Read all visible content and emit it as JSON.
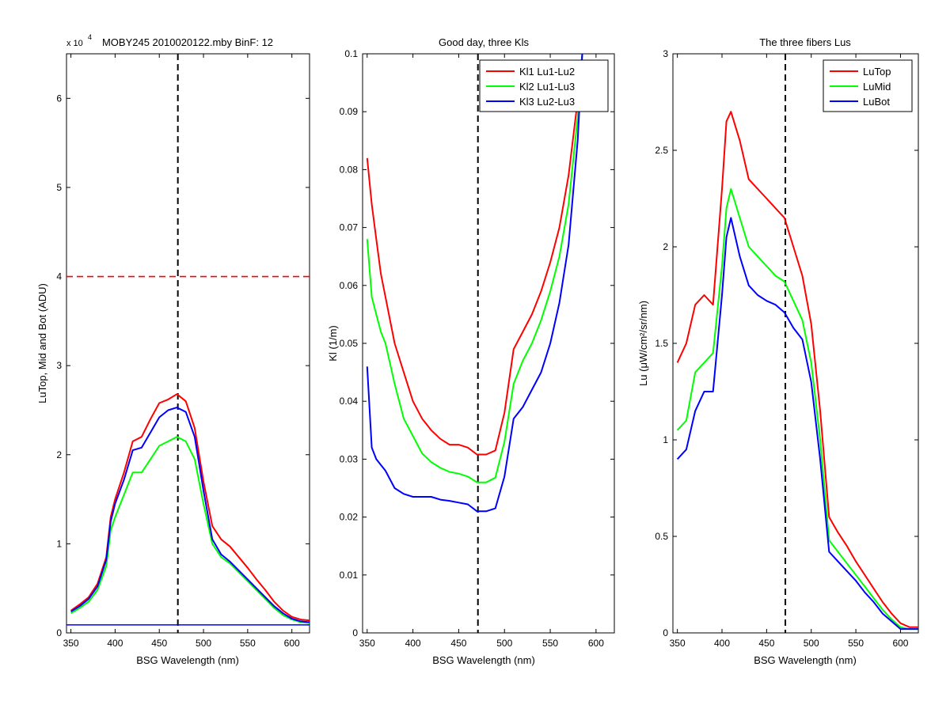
{
  "chart_data": [
    {
      "type": "line",
      "title": "MOBY245  2010020122.mby BinF: 12",
      "exponent_label": "x 10",
      "exponent_power": "4",
      "xlabel": "BSG Wavelength (nm)",
      "ylabel": "LuTop, Mid and Bot (ADU)",
      "xlim": [
        345,
        620
      ],
      "ylim": [
        0,
        6.5
      ],
      "y_scale_factor": 10000,
      "xticks": [
        350,
        400,
        450,
        500,
        550,
        600
      ],
      "yticks": [
        0,
        1,
        2,
        3,
        4,
        5,
        6
      ],
      "grid": false,
      "reference_lines": [
        {
          "orientation": "vertical",
          "value": 471,
          "color": "#000000",
          "style": "dashed"
        },
        {
          "orientation": "horizontal",
          "value": 4.0,
          "color": "#ff0000",
          "style": "dashed"
        },
        {
          "orientation": "horizontal",
          "value": 0.09,
          "color": "#0000ff",
          "style": "solid"
        }
      ],
      "series": [
        {
          "color": "#ff0000",
          "x": [
            350,
            360,
            370,
            380,
            390,
            395,
            400,
            410,
            420,
            430,
            440,
            450,
            460,
            470,
            480,
            490,
            500,
            510,
            520,
            530,
            540,
            550,
            560,
            570,
            580,
            590,
            600,
            610,
            620
          ],
          "values": [
            0.25,
            0.32,
            0.4,
            0.55,
            0.85,
            1.3,
            1.5,
            1.8,
            2.15,
            2.2,
            2.4,
            2.58,
            2.62,
            2.68,
            2.6,
            2.3,
            1.7,
            1.2,
            1.05,
            0.97,
            0.85,
            0.73,
            0.6,
            0.48,
            0.35,
            0.25,
            0.18,
            0.15,
            0.14
          ]
        },
        {
          "color": "#00ff00",
          "x": [
            350,
            360,
            370,
            380,
            390,
            395,
            400,
            410,
            420,
            430,
            440,
            450,
            460,
            470,
            480,
            490,
            500,
            510,
            520,
            530,
            540,
            550,
            560,
            570,
            580,
            590,
            600,
            610,
            620
          ],
          "values": [
            0.22,
            0.28,
            0.35,
            0.48,
            0.75,
            1.15,
            1.3,
            1.55,
            1.8,
            1.8,
            1.95,
            2.1,
            2.15,
            2.2,
            2.15,
            1.95,
            1.45,
            1.0,
            0.85,
            0.78,
            0.68,
            0.58,
            0.48,
            0.38,
            0.28,
            0.2,
            0.15,
            0.12,
            0.11
          ]
        },
        {
          "color": "#0000ff",
          "x": [
            350,
            360,
            370,
            380,
            390,
            395,
            400,
            410,
            420,
            430,
            440,
            450,
            460,
            470,
            480,
            490,
            500,
            510,
            520,
            530,
            540,
            550,
            560,
            570,
            580,
            590,
            600,
            610,
            620
          ],
          "values": [
            0.24,
            0.3,
            0.38,
            0.52,
            0.82,
            1.25,
            1.45,
            1.72,
            2.05,
            2.08,
            2.25,
            2.42,
            2.5,
            2.53,
            2.48,
            2.2,
            1.6,
            1.05,
            0.88,
            0.8,
            0.7,
            0.6,
            0.5,
            0.4,
            0.3,
            0.22,
            0.16,
            0.13,
            0.12
          ]
        }
      ]
    },
    {
      "type": "line",
      "title": "Good day, three Kls",
      "xlabel": "BSG Wavelength (nm)",
      "ylabel": "Kl (1/m)",
      "xlim": [
        345,
        620
      ],
      "ylim": [
        0,
        0.1
      ],
      "xticks": [
        350,
        400,
        450,
        500,
        550,
        600
      ],
      "yticks": [
        0,
        0.01,
        0.02,
        0.03,
        0.04,
        0.05,
        0.06,
        0.07,
        0.08,
        0.09,
        0.1
      ],
      "grid": false,
      "legend_position": "top-right",
      "reference_lines": [
        {
          "orientation": "vertical",
          "value": 471,
          "color": "#000000",
          "style": "dashed"
        }
      ],
      "series": [
        {
          "name": "Kl1 Lu1-Lu2",
          "color": "#ff0000",
          "x": [
            350,
            355,
            360,
            365,
            370,
            380,
            390,
            400,
            410,
            420,
            430,
            440,
            450,
            460,
            470,
            480,
            490,
            500,
            510,
            520,
            530,
            540,
            550,
            560,
            570,
            580,
            585
          ],
          "values": [
            0.082,
            0.074,
            0.068,
            0.062,
            0.058,
            0.05,
            0.045,
            0.04,
            0.037,
            0.035,
            0.0335,
            0.0325,
            0.0325,
            0.032,
            0.0308,
            0.0308,
            0.0315,
            0.038,
            0.049,
            0.052,
            0.055,
            0.059,
            0.064,
            0.07,
            0.079,
            0.092,
            0.1
          ]
        },
        {
          "name": "Kl2 Lu1-Lu3",
          "color": "#00ff00",
          "x": [
            350,
            355,
            360,
            365,
            370,
            380,
            390,
            400,
            410,
            420,
            430,
            440,
            450,
            460,
            470,
            480,
            490,
            500,
            510,
            520,
            530,
            540,
            550,
            560,
            570,
            580,
            585
          ],
          "values": [
            0.068,
            0.058,
            0.055,
            0.052,
            0.05,
            0.043,
            0.037,
            0.034,
            0.031,
            0.0295,
            0.0285,
            0.0278,
            0.0275,
            0.027,
            0.026,
            0.026,
            0.0268,
            0.033,
            0.043,
            0.047,
            0.05,
            0.054,
            0.059,
            0.065,
            0.074,
            0.089,
            0.1
          ]
        },
        {
          "name": "Kl3 Lu2-Lu3",
          "color": "#0000ff",
          "x": [
            350,
            355,
            360,
            365,
            370,
            380,
            390,
            400,
            410,
            420,
            430,
            440,
            450,
            460,
            470,
            480,
            490,
            500,
            510,
            520,
            530,
            540,
            550,
            560,
            570,
            580,
            585
          ],
          "values": [
            0.046,
            0.032,
            0.03,
            0.029,
            0.028,
            0.025,
            0.024,
            0.0235,
            0.0235,
            0.0235,
            0.023,
            0.0228,
            0.0225,
            0.0222,
            0.021,
            0.021,
            0.0215,
            0.027,
            0.037,
            0.039,
            0.042,
            0.045,
            0.05,
            0.057,
            0.067,
            0.085,
            0.1
          ]
        }
      ]
    },
    {
      "type": "line",
      "title": "The three fibers Lus",
      "xlabel": "BSG Wavelength (nm)",
      "ylabel": "Lu (μW/cm²/sr/nm)",
      "xlim": [
        345,
        620
      ],
      "ylim": [
        0,
        3
      ],
      "xticks": [
        350,
        400,
        450,
        500,
        550,
        600
      ],
      "yticks": [
        0,
        0.5,
        1,
        1.5,
        2,
        2.5,
        3
      ],
      "grid": false,
      "legend_position": "top-right",
      "reference_lines": [
        {
          "orientation": "vertical",
          "value": 471,
          "color": "#000000",
          "style": "dashed"
        }
      ],
      "series": [
        {
          "name": "LuTop",
          "color": "#ff0000",
          "x": [
            350,
            360,
            370,
            380,
            390,
            400,
            405,
            410,
            420,
            430,
            440,
            450,
            460,
            470,
            480,
            490,
            500,
            510,
            520,
            530,
            540,
            550,
            560,
            570,
            580,
            590,
            600,
            610,
            620
          ],
          "values": [
            1.4,
            1.5,
            1.7,
            1.75,
            1.7,
            2.3,
            2.65,
            2.7,
            2.55,
            2.35,
            2.3,
            2.25,
            2.2,
            2.15,
            2.0,
            1.85,
            1.6,
            1.15,
            0.6,
            0.52,
            0.45,
            0.37,
            0.3,
            0.23,
            0.16,
            0.1,
            0.05,
            0.03,
            0.03
          ]
        },
        {
          "name": "LuMid",
          "color": "#00ff00",
          "x": [
            350,
            360,
            370,
            380,
            390,
            400,
            405,
            410,
            420,
            430,
            440,
            450,
            460,
            470,
            480,
            490,
            500,
            510,
            520,
            530,
            540,
            550,
            560,
            570,
            580,
            590,
            600,
            610,
            620
          ],
          "values": [
            1.05,
            1.1,
            1.35,
            1.4,
            1.45,
            1.9,
            2.2,
            2.3,
            2.15,
            2.0,
            1.95,
            1.9,
            1.85,
            1.82,
            1.72,
            1.62,
            1.4,
            1.0,
            0.48,
            0.42,
            0.36,
            0.3,
            0.24,
            0.18,
            0.12,
            0.07,
            0.03,
            0.02,
            0.02
          ]
        },
        {
          "name": "LuBot",
          "color": "#0000ff",
          "x": [
            350,
            360,
            370,
            380,
            390,
            400,
            405,
            410,
            420,
            430,
            440,
            450,
            460,
            470,
            480,
            490,
            500,
            510,
            520,
            530,
            540,
            550,
            560,
            570,
            580,
            590,
            600,
            610,
            620
          ],
          "values": [
            0.9,
            0.95,
            1.15,
            1.25,
            1.25,
            1.75,
            2.05,
            2.15,
            1.95,
            1.8,
            1.75,
            1.72,
            1.7,
            1.66,
            1.58,
            1.52,
            1.3,
            0.9,
            0.42,
            0.37,
            0.32,
            0.27,
            0.21,
            0.16,
            0.1,
            0.06,
            0.02,
            0.02,
            0.02
          ]
        }
      ]
    }
  ]
}
